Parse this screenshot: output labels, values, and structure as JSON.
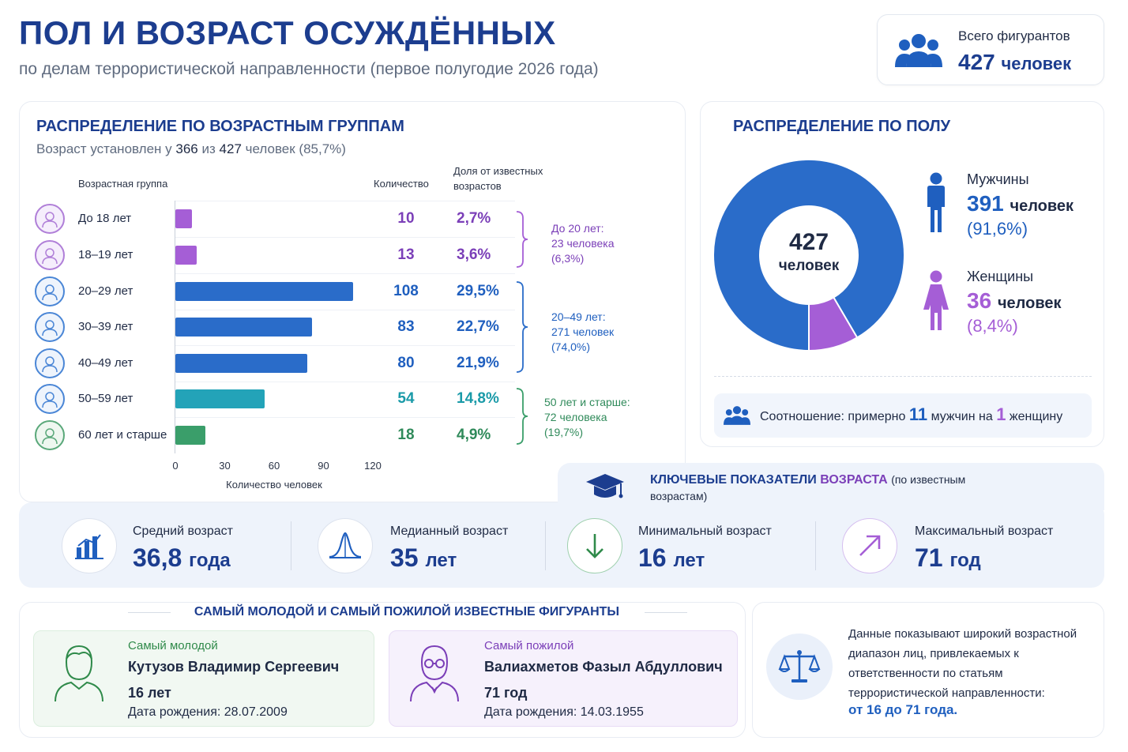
{
  "header": {
    "title": "ПОЛ И ВОЗРАСТ ОСУЖДЁННЫХ",
    "subtitle": "по делам террористической направленности (первое полугодие 2026 года)"
  },
  "total": {
    "label": "Всего фигурантов",
    "value": "427",
    "unit": "человек",
    "icon": "people-group-icon"
  },
  "age_section": {
    "title": "РАСПРЕДЕЛЕНИЕ ПО ВОЗРАСТНЫМ ГРУППАМ",
    "note_prefix": "Возраст установлен у",
    "note_known": "366",
    "note_mid": "из",
    "note_total": "427",
    "note_suffix": "человек (85,7%)",
    "col_group": "Возрастная группа",
    "col_count": "Количество",
    "col_share_1": "Доля от известных",
    "col_share_2": "возрастов",
    "braces": [
      {
        "line1": "До 20 лет:",
        "line2": "23 человека",
        "line3": "(6,3%)"
      },
      {
        "line1": "20–49 лет:",
        "line2": "271 человек",
        "line3": "(74,0%)"
      },
      {
        "line1": "50 лет и старше:",
        "line2": "72 человека",
        "line3": "(19,7%)"
      }
    ]
  },
  "chart_data": [
    {
      "type": "bar",
      "orientation": "horizontal",
      "categories": [
        "До 18 лет",
        "18–19 лет",
        "20–29 лет",
        "30–39 лет",
        "40–49 лет",
        "50–59 лет",
        "60 лет и старше"
      ],
      "values": [
        10,
        13,
        108,
        83,
        80,
        54,
        18
      ],
      "value_labels": [
        "10",
        "13",
        "108",
        "83",
        "80",
        "54",
        "18"
      ],
      "shares": [
        "2,7%",
        "3,6%",
        "29,5%",
        "22,7%",
        "21,9%",
        "14,8%",
        "4,9%"
      ],
      "colors": [
        "#a55ed6",
        "#a55ed6",
        "#2a6cc9",
        "#2a6cc9",
        "#2a6cc9",
        "#23a3b8",
        "#3a9e6a"
      ],
      "xlabel": "Количество человек",
      "xticks": [
        0,
        30,
        60,
        90,
        120
      ],
      "xlim": [
        0,
        120
      ]
    },
    {
      "type": "pie",
      "categories": [
        "Мужчины",
        "Женщины"
      ],
      "values": [
        391,
        36
      ],
      "colors": [
        "#2a6cc9",
        "#a55ed6"
      ],
      "center_value": "427",
      "center_label": "человек"
    }
  ],
  "gender_section": {
    "title": "РАСПРЕДЕЛЕНИЕ ПО ПОЛУ",
    "men": {
      "label": "Мужчины",
      "value": "391",
      "unit": "человек",
      "pct": "(91,6%)",
      "color": "#1f5fbf",
      "icon": "male-person-icon"
    },
    "women": {
      "label": "Женщины",
      "value": "36",
      "unit": "человек",
      "pct": "(8,4%)",
      "color": "#a55ed6",
      "icon": "female-person-icon"
    },
    "ratio": {
      "prefix": "Соотношение: примерно",
      "men": "11",
      "mid": "мужчин на",
      "women": "1",
      "suffix": "женщину"
    }
  },
  "key_section": {
    "title_a": "КЛЮЧЕВЫЕ ПОКАЗАТЕЛИ",
    "title_b": "ВОЗРАСТА",
    "title_c": "(по известным возрастам)",
    "items": [
      {
        "label": "Средний возраст",
        "value": "36,8",
        "unit": "года",
        "icon": "bar-chart-icon"
      },
      {
        "label": "Медианный возраст",
        "value": "35",
        "unit": "лет",
        "icon": "bell-curve-icon"
      },
      {
        "label": "Минимальный возраст",
        "value": "16",
        "unit": "лет",
        "icon": "arrow-down-icon"
      },
      {
        "label": "Максимальный возраст",
        "value": "71",
        "unit": "год",
        "icon": "arrow-up-right-icon"
      }
    ]
  },
  "persons_section": {
    "title": "САМЫЙ МОЛОДОЙ И САМЫЙ ПОЖИЛОЙ ИЗВЕСТНЫЕ ФИГУРАНТЫ",
    "youngest": {
      "type": "Самый молодой",
      "name": "Кутузов Владимир Сергеевич",
      "age": "16 лет",
      "dob": "Дата рождения: 28.07.2009"
    },
    "oldest": {
      "type": "Самый пожилой",
      "name": "Валиахметов Фазыл Абдуллович",
      "age": "71 год",
      "dob": "Дата рождения: 14.03.1955"
    }
  },
  "conclusion": {
    "text": "Данные показывают широкий возрастной диапазон лиц, привлекаемых к ответственности по статьям террористической направленности:",
    "emphasis": "от 16 до 71 года.",
    "icon": "scales-icon"
  }
}
